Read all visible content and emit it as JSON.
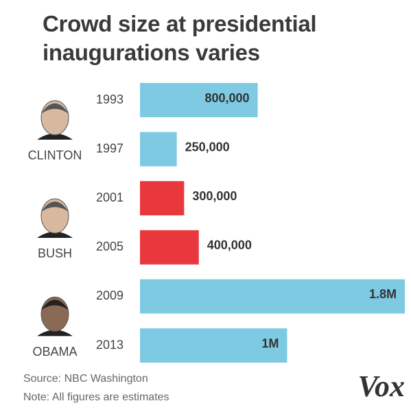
{
  "chart_data": {
    "type": "bar",
    "orientation": "horizontal",
    "title": "Crowd size at presidential inaugurations varies",
    "categories": [
      "1993",
      "1997",
      "2001",
      "2005",
      "2009",
      "2013"
    ],
    "values": [
      800000,
      250000,
      300000,
      400000,
      1800000,
      1000000
    ],
    "value_labels": [
      "800,000",
      "250,000",
      "300,000",
      "400,000",
      "1.8M",
      "1M"
    ],
    "colors": [
      "#7ecae3",
      "#7ecae3",
      "#e8383d",
      "#e8383d",
      "#7ecae3",
      "#7ecae3"
    ],
    "groups": [
      "CLINTON",
      "BUSH",
      "OBAMA"
    ],
    "xlim": [
      0,
      1800000
    ],
    "source": "Source: NBC Washington",
    "note": "Note: All figures are estimates",
    "logo": "Vox"
  }
}
